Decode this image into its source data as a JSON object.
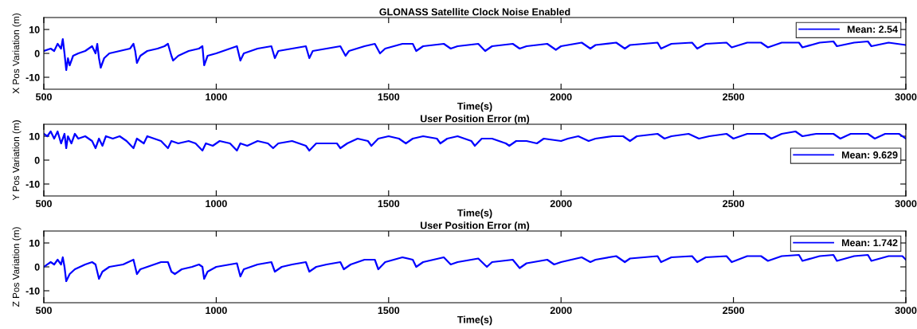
{
  "chart_data": [
    {
      "type": "line",
      "title": "GLONASS Satellite Clock Noise Enabled",
      "xlabel": "Time(s)",
      "ylabel": "X Pos Variation (m)",
      "xlim": [
        500,
        3000
      ],
      "xticks": [
        500,
        1000,
        1500,
        2000,
        2500,
        3000
      ],
      "ylim": [
        -15,
        15
      ],
      "yticks": [
        -10,
        0,
        10
      ],
      "legend": "top right",
      "grid": false,
      "series": [
        {
          "name": "Mean: 2.54",
          "color": "#0000ff",
          "x": [
            500,
            520,
            530,
            540,
            550,
            555,
            560,
            565,
            570,
            575,
            585,
            600,
            620,
            640,
            650,
            655,
            660,
            665,
            675,
            690,
            720,
            750,
            760,
            765,
            770,
            780,
            800,
            830,
            850,
            860,
            870,
            875,
            890,
            920,
            950,
            960,
            965,
            975,
            1000,
            1040,
            1060,
            1070,
            1080,
            1120,
            1160,
            1170,
            1180,
            1220,
            1260,
            1270,
            1280,
            1320,
            1360,
            1375,
            1385,
            1430,
            1460,
            1475,
            1490,
            1540,
            1570,
            1580,
            1600,
            1660,
            1680,
            1700,
            1760,
            1780,
            1800,
            1860,
            1880,
            1900,
            1960,
            1985,
            2000,
            2060,
            2085,
            2100,
            2160,
            2185,
            2200,
            2280,
            2290,
            2320,
            2380,
            2395,
            2420,
            2480,
            2495,
            2540,
            2580,
            2600,
            2640,
            2690,
            2700,
            2750,
            2790,
            2800,
            2850,
            2890,
            2900,
            2950,
            3000
          ],
          "values": [
            1,
            2,
            1,
            4,
            2,
            6,
            0,
            -7,
            -2,
            -5,
            -1,
            0,
            1,
            3,
            0,
            4,
            -2,
            -6,
            -2,
            0,
            1,
            2,
            4,
            1,
            -4,
            -1,
            1,
            2,
            3,
            4,
            -1,
            -3,
            -1,
            1,
            2,
            3,
            -5,
            -1,
            0,
            2,
            3,
            -3,
            0,
            2,
            3,
            -2,
            1,
            2,
            3,
            -2,
            1,
            2,
            3,
            -1,
            1,
            3,
            4,
            0,
            2,
            4,
            4,
            1,
            3,
            4,
            2,
            3,
            4,
            1,
            3,
            4,
            2,
            3,
            4,
            1.5,
            3,
            4.5,
            2,
            3.5,
            4.5,
            2,
            3.5,
            4.5,
            2,
            4,
            4.5,
            2,
            4,
            4.5,
            2.5,
            4.5,
            4.5,
            2.5,
            4.5,
            4.5,
            2.5,
            4.5,
            5,
            3,
            4.5,
            5,
            3,
            4.5,
            3.5
          ]
        }
      ]
    },
    {
      "type": "line",
      "title": "User Position Error (m)",
      "xlabel": "Time(s)",
      "ylabel": "Y Pos Variation (m)",
      "xlim": [
        500,
        3000
      ],
      "xticks": [
        500,
        1000,
        1500,
        2000,
        2500,
        3000
      ],
      "ylim": [
        -15,
        15
      ],
      "yticks": [
        -10,
        0,
        10
      ],
      "legend": "right",
      "grid": false,
      "series": [
        {
          "name": "Mean: 9.629",
          "color": "#0000ff",
          "x": [
            500,
            510,
            520,
            530,
            540,
            550,
            560,
            565,
            570,
            580,
            590,
            600,
            620,
            640,
            650,
            660,
            670,
            680,
            700,
            720,
            740,
            760,
            770,
            790,
            800,
            820,
            840,
            860,
            870,
            890,
            920,
            940,
            960,
            970,
            990,
            1010,
            1040,
            1060,
            1070,
            1090,
            1120,
            1150,
            1165,
            1180,
            1220,
            1260,
            1270,
            1290,
            1320,
            1350,
            1360,
            1380,
            1410,
            1440,
            1450,
            1470,
            1500,
            1530,
            1550,
            1570,
            1600,
            1640,
            1650,
            1670,
            1700,
            1740,
            1750,
            1770,
            1800,
            1840,
            1850,
            1870,
            1900,
            1930,
            1950,
            2000,
            2020,
            2050,
            2080,
            2100,
            2150,
            2180,
            2200,
            2220,
            2280,
            2300,
            2320,
            2370,
            2400,
            2430,
            2480,
            2500,
            2540,
            2590,
            2610,
            2640,
            2680,
            2700,
            2740,
            2790,
            2810,
            2840,
            2890,
            2910,
            2940,
            2980,
            3000
          ],
          "values": [
            11,
            10,
            12,
            9,
            12,
            7,
            11,
            5,
            10,
            7,
            11,
            9,
            10,
            8,
            5,
            9,
            6,
            10,
            9,
            10,
            8,
            5,
            9,
            7,
            10,
            9,
            8,
            5,
            8,
            7,
            8,
            7,
            4,
            7,
            6,
            8,
            7,
            4,
            7,
            6,
            8,
            7,
            5,
            7,
            8,
            6,
            4,
            7,
            7,
            7,
            5,
            7,
            9,
            8,
            6,
            9,
            10,
            9,
            7,
            9,
            10,
            9,
            7,
            9,
            10,
            8,
            6,
            9,
            9,
            7,
            6,
            8,
            8,
            7,
            9,
            8,
            9,
            10,
            8,
            9,
            10,
            10,
            8,
            10,
            11,
            9,
            10,
            11,
            9,
            10,
            11,
            9,
            11,
            11,
            9,
            11,
            12,
            10,
            11,
            11,
            9,
            11,
            11,
            9,
            11,
            11,
            9
          ]
        }
      ]
    },
    {
      "type": "line",
      "title": "User Position Error (m)",
      "xlabel": "Time(s)",
      "ylabel": "Z Pos Variation (m)",
      "xlim": [
        500,
        3000
      ],
      "xticks": [
        500,
        1000,
        1500,
        2000,
        2500,
        3000
      ],
      "ylim": [
        -15,
        15
      ],
      "yticks": [
        -10,
        0,
        10
      ],
      "legend": "top right",
      "grid": false,
      "series": [
        {
          "name": "Mean: 1.742",
          "color": "#0000ff",
          "x": [
            500,
            520,
            530,
            540,
            550,
            555,
            560,
            565,
            575,
            590,
            620,
            640,
            650,
            660,
            670,
            690,
            730,
            760,
            770,
            780,
            800,
            840,
            860,
            870,
            880,
            900,
            930,
            950,
            960,
            965,
            975,
            1000,
            1040,
            1060,
            1070,
            1080,
            1120,
            1160,
            1170,
            1190,
            1220,
            1260,
            1270,
            1290,
            1320,
            1360,
            1370,
            1390,
            1430,
            1460,
            1470,
            1490,
            1540,
            1570,
            1580,
            1600,
            1660,
            1680,
            1700,
            1760,
            1785,
            1800,
            1860,
            1880,
            1900,
            1960,
            1980,
            2000,
            2060,
            2085,
            2100,
            2160,
            2185,
            2200,
            2280,
            2290,
            2320,
            2380,
            2395,
            2420,
            2480,
            2495,
            2540,
            2580,
            2600,
            2640,
            2690,
            2700,
            2750,
            2790,
            2800,
            2850,
            2890,
            2900,
            2950,
            2990,
            3000
          ],
          "values": [
            0,
            2,
            1,
            3,
            1,
            4,
            0,
            -6,
            -3,
            -1,
            1,
            2,
            1,
            -5,
            -2,
            0,
            1,
            3,
            -3,
            -1,
            0,
            2,
            2,
            -2,
            -3,
            -1,
            0,
            1,
            0,
            -5,
            -2,
            0,
            1,
            1.5,
            -4,
            -1,
            1,
            2,
            -2,
            0,
            1,
            2,
            -2,
            0,
            1,
            2,
            -1,
            1,
            3,
            3,
            -1,
            2,
            4,
            3,
            0,
            2,
            4,
            1,
            2,
            3.5,
            0,
            2,
            3,
            -0.5,
            1.5,
            3,
            1,
            2,
            4,
            2,
            3,
            4.5,
            2,
            3.5,
            4.5,
            2,
            4,
            4.5,
            2,
            4,
            4.5,
            2,
            4.5,
            4.5,
            2.5,
            4.5,
            5,
            2.5,
            4.5,
            5,
            2.5,
            4.5,
            5,
            2.5,
            4.5,
            4.5,
            3
          ]
        }
      ]
    }
  ]
}
